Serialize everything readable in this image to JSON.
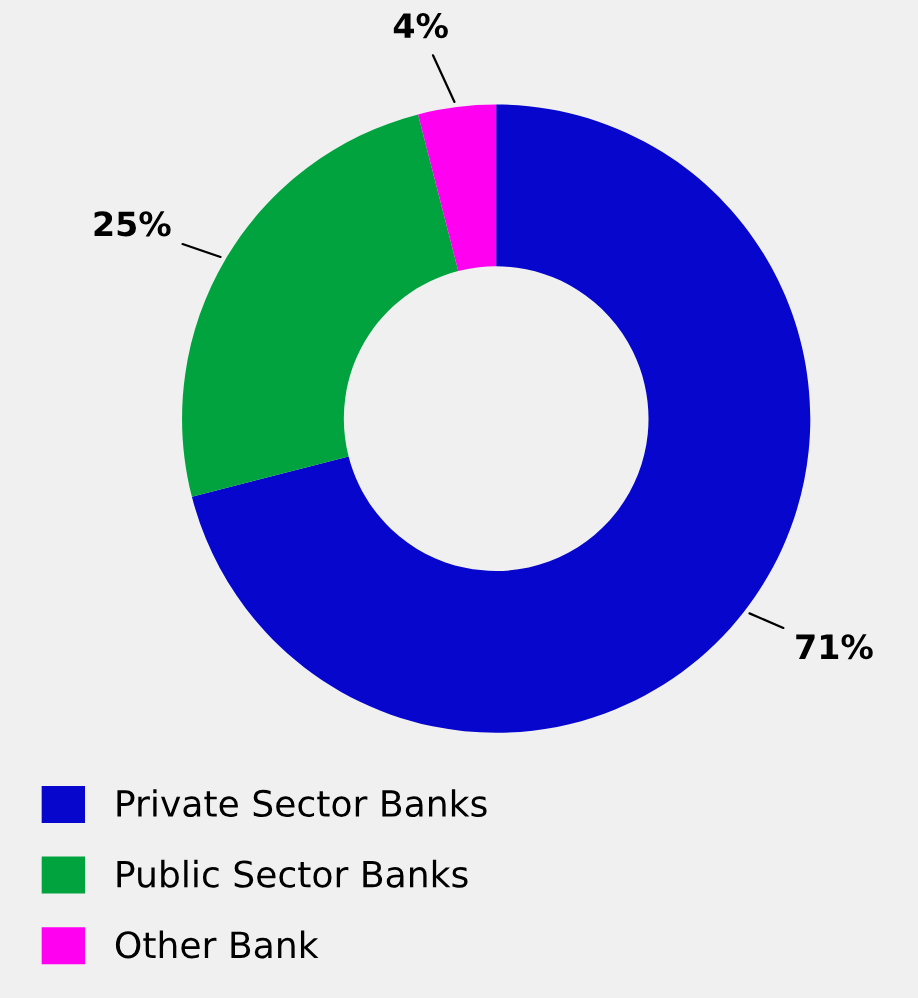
{
  "chart_data": {
    "type": "donut",
    "categories": [
      "Private Sector Banks",
      "Public Sector Banks",
      "Other Bank"
    ],
    "values": [
      71,
      25,
      4
    ],
    "colors": [
      "#0606cc",
      "#00a33e",
      "#ff00f0"
    ],
    "value_labels": [
      "71%",
      "25%",
      "4%"
    ],
    "legend": "bottom left"
  }
}
